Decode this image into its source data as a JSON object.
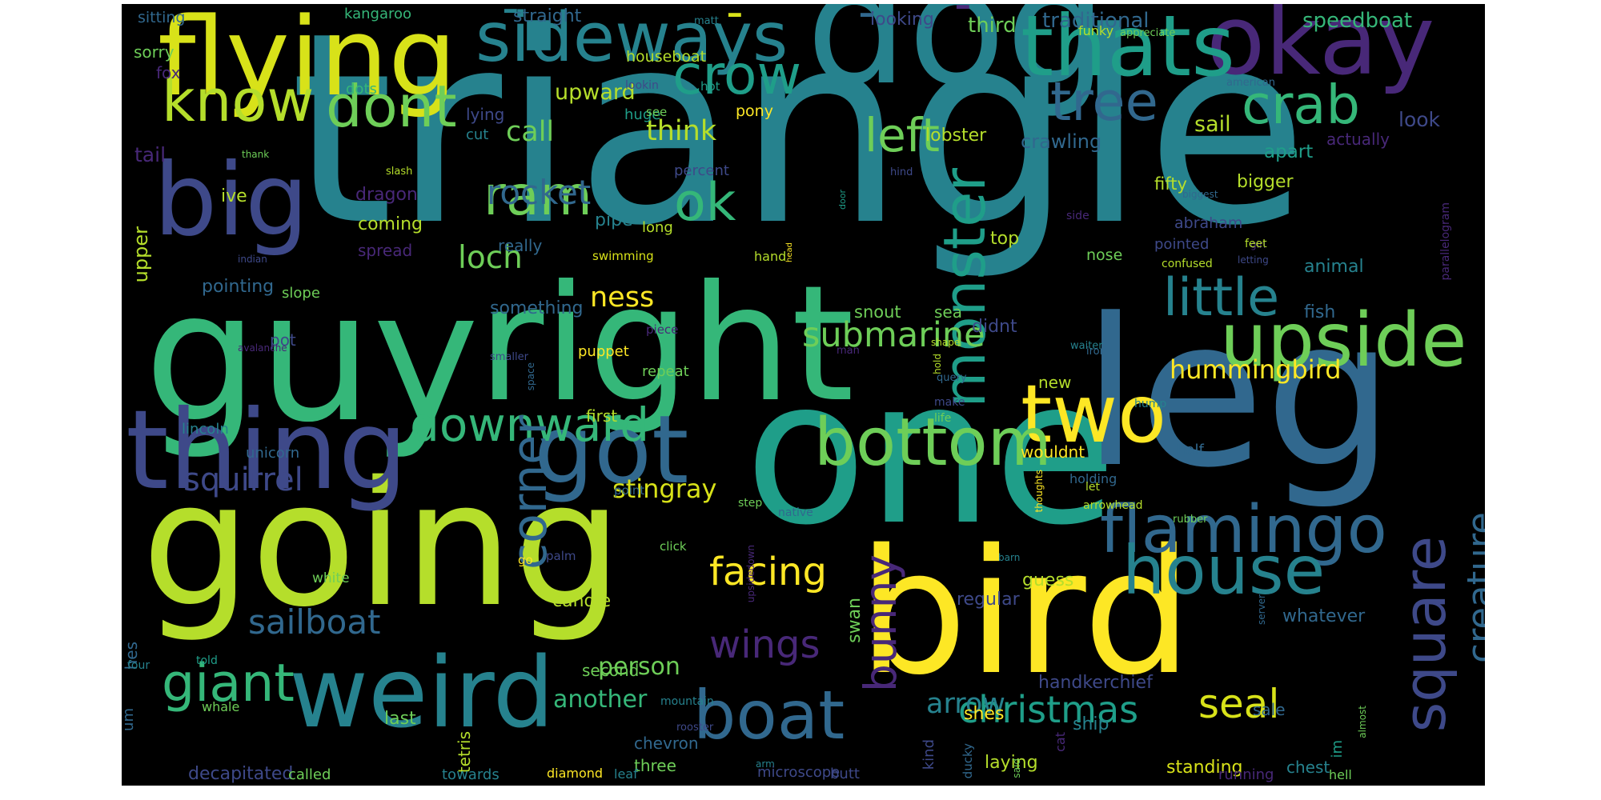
{
  "palette": [
    "#fde725",
    "#b5de2b",
    "#6ece58",
    "#35b779",
    "#1f9e89",
    "#26828e",
    "#31688e",
    "#3e4989",
    "#482878",
    "#440154"
  ],
  "words": [
    {
      "text": "triangle",
      "color": "#26828e"
    },
    {
      "text": "guy",
      "color": "#35b779"
    },
    {
      "text": "going",
      "color": "#b5de2b"
    },
    {
      "text": "one",
      "color": "#1f9e89"
    },
    {
      "text": "right",
      "color": "#35b779"
    },
    {
      "text": "bird",
      "color": "#fde725"
    },
    {
      "text": "leg",
      "color": "#31688e"
    },
    {
      "text": "dog",
      "color": "#26828e"
    },
    {
      "text": "flying",
      "color": "#d8e219"
    },
    {
      "text": "thing",
      "color": "#3e4989"
    },
    {
      "text": "okay",
      "color": "#482878"
    },
    {
      "text": "got",
      "color": "#31688e"
    },
    {
      "text": "weird",
      "color": "#26828e"
    },
    {
      "text": "upside",
      "color": "#6ece58"
    },
    {
      "text": "two",
      "color": "#fde725"
    },
    {
      "text": "big",
      "color": "#3e4989"
    },
    {
      "text": "thats",
      "color": "#1f9e89"
    },
    {
      "text": "flamingo",
      "color": "#31688e"
    },
    {
      "text": "sideways",
      "color": "#26828e"
    },
    {
      "text": "bottom",
      "color": "#6ece58"
    },
    {
      "text": "monster",
      "color": "#1f9e89"
    },
    {
      "text": "house",
      "color": "#26828e"
    },
    {
      "text": "boat",
      "color": "#31688e"
    },
    {
      "text": "square",
      "color": "#3e4989"
    },
    {
      "text": "know",
      "color": "#b5de2b"
    },
    {
      "text": "dont",
      "color": "#6ece58"
    },
    {
      "text": "tree",
      "color": "#31688e"
    },
    {
      "text": "crab",
      "color": "#35b779"
    },
    {
      "text": "crow",
      "color": "#1f9e89"
    },
    {
      "text": "little",
      "color": "#26828e"
    },
    {
      "text": "downward",
      "color": "#35b779"
    },
    {
      "text": "corner",
      "color": "#31688e"
    },
    {
      "text": "giant",
      "color": "#35b779"
    },
    {
      "text": "bunny",
      "color": "#482878"
    },
    {
      "text": "ram",
      "color": "#6ece58"
    },
    {
      "text": "left",
      "color": "#6ece58"
    },
    {
      "text": "ok",
      "color": "#35b779"
    },
    {
      "text": "christmas",
      "color": "#1f9e89"
    },
    {
      "text": "creature",
      "color": "#31688e"
    },
    {
      "text": "submarine",
      "color": "#6ece58"
    },
    {
      "text": "wings",
      "color": "#482878"
    },
    {
      "text": "facing",
      "color": "#fde725"
    },
    {
      "text": "sailboat",
      "color": "#31688e"
    },
    {
      "text": "seal",
      "color": "#d8e219"
    },
    {
      "text": "squirrel",
      "color": "#3e4989"
    },
    {
      "text": "rocket",
      "color": "#31688e"
    },
    {
      "text": "loch",
      "color": "#6ece58"
    },
    {
      "text": "ness",
      "color": "#fde725"
    },
    {
      "text": "call",
      "color": "#6ece58"
    },
    {
      "text": "think",
      "color": "#b5de2b"
    },
    {
      "text": "stingray",
      "color": "#d8e219"
    },
    {
      "text": "hummingbird",
      "color": "#fde725"
    },
    {
      "text": "person",
      "color": "#6ece58"
    },
    {
      "text": "arrow",
      "color": "#26828e"
    },
    {
      "text": "another",
      "color": "#35b779"
    },
    {
      "text": "upward",
      "color": "#b5de2b"
    },
    {
      "text": "sail",
      "color": "#b5de2b"
    },
    {
      "text": "speedboat",
      "color": "#35b779"
    },
    {
      "text": "traditional",
      "color": "#31688e"
    },
    {
      "text": "third",
      "color": "#6ece58"
    },
    {
      "text": "looking",
      "color": "#3e4989"
    },
    {
      "text": "straight",
      "color": "#31688e"
    },
    {
      "text": "kangaroo",
      "color": "#35b779"
    },
    {
      "text": "sitting",
      "color": "#31688e"
    },
    {
      "text": "matt",
      "color": "#26828e"
    },
    {
      "text": "funky",
      "color": "#b5de2b"
    },
    {
      "text": "appreciate",
      "color": "#6ece58"
    },
    {
      "text": "sorry",
      "color": "#6ece58"
    },
    {
      "text": "fox",
      "color": "#482878"
    },
    {
      "text": "houseboat",
      "color": "#b5de2b"
    },
    {
      "text": "hot",
      "color": "#1f9e89"
    },
    {
      "text": "american",
      "color": "#31688e"
    },
    {
      "text": "dots",
      "color": "#35b779"
    },
    {
      "text": "lookin",
      "color": "#3e4989"
    },
    {
      "text": "huge",
      "color": "#1f9e89"
    },
    {
      "text": "see",
      "color": "#6ece58"
    },
    {
      "text": "pony",
      "color": "#fde725"
    },
    {
      "text": "look",
      "color": "#3e4989"
    },
    {
      "text": "lying",
      "color": "#3e4989"
    },
    {
      "text": "cut",
      "color": "#26828e"
    },
    {
      "text": "crawling",
      "color": "#31688e"
    },
    {
      "text": "lobster",
      "color": "#b5de2b"
    },
    {
      "text": "apart",
      "color": "#1f9e89"
    },
    {
      "text": "actually",
      "color": "#482878"
    },
    {
      "text": "tail",
      "color": "#482878"
    },
    {
      "text": "thank",
      "color": "#6ece58"
    },
    {
      "text": "percent",
      "color": "#3e4989"
    },
    {
      "text": "hind",
      "color": "#3e4989"
    },
    {
      "text": "slash",
      "color": "#b5de2b"
    },
    {
      "text": "fifty",
      "color": "#b5de2b"
    },
    {
      "text": "bigger",
      "color": "#b5de2b"
    },
    {
      "text": "parallelogram",
      "color": "#482878"
    },
    {
      "text": "ive",
      "color": "#b5de2b"
    },
    {
      "text": "dragon",
      "color": "#482878"
    },
    {
      "text": "biggest",
      "color": "#31688e"
    },
    {
      "text": "upper",
      "color": "#b5de2b"
    },
    {
      "text": "coming",
      "color": "#b5de2b"
    },
    {
      "text": "pipe",
      "color": "#26828e"
    },
    {
      "text": "side",
      "color": "#482878"
    },
    {
      "text": "abraham",
      "color": "#3e4989"
    },
    {
      "text": "long",
      "color": "#b5de2b"
    },
    {
      "text": "really",
      "color": "#31688e"
    },
    {
      "text": "door",
      "color": "#1f9e89"
    },
    {
      "text": "pointed",
      "color": "#3e4989"
    },
    {
      "text": "girl",
      "color": "#482878"
    },
    {
      "text": "feet",
      "color": "#b5de2b"
    },
    {
      "text": "spread",
      "color": "#482878"
    },
    {
      "text": "indian",
      "color": "#3e4989"
    },
    {
      "text": "swimming",
      "color": "#d8e219"
    },
    {
      "text": "hand",
      "color": "#b5de2b"
    },
    {
      "text": "head",
      "color": "#fde725"
    },
    {
      "text": "top",
      "color": "#b5de2b"
    },
    {
      "text": "nose",
      "color": "#6ece58"
    },
    {
      "text": "confused",
      "color": "#b5de2b"
    },
    {
      "text": "letting",
      "color": "#3e4989"
    },
    {
      "text": "animal",
      "color": "#26828e"
    },
    {
      "text": "pointing",
      "color": "#31688e"
    },
    {
      "text": "slope",
      "color": "#6ece58"
    },
    {
      "text": "something",
      "color": "#31688e"
    },
    {
      "text": "snout",
      "color": "#6ece58"
    },
    {
      "text": "sea",
      "color": "#6ece58"
    },
    {
      "text": "fish",
      "color": "#31688e"
    },
    {
      "text": "pot",
      "color": "#3e4989"
    },
    {
      "text": "avalanche",
      "color": "#482878"
    },
    {
      "text": "piece",
      "color": "#482878"
    },
    {
      "text": "shape",
      "color": "#b5de2b"
    },
    {
      "text": "didnt",
      "color": "#3e4989"
    },
    {
      "text": "waiter",
      "color": "#26828e"
    },
    {
      "text": "man",
      "color": "#482878"
    },
    {
      "text": "iron",
      "color": "#31688e"
    },
    {
      "text": "puppet",
      "color": "#fde725"
    },
    {
      "text": "space",
      "color": "#31688e"
    },
    {
      "text": "smaller",
      "color": "#3e4989"
    },
    {
      "text": "first",
      "color": "#b5de2b"
    },
    {
      "text": "make",
      "color": "#3e4989"
    },
    {
      "text": "hold",
      "color": "#b5de2b"
    },
    {
      "text": "query",
      "color": "#31688e"
    },
    {
      "text": "new",
      "color": "#b5de2b"
    },
    {
      "text": "repeat",
      "color": "#6ece58"
    },
    {
      "text": "hump",
      "color": "#26828e"
    },
    {
      "text": "life",
      "color": "#6ece58"
    },
    {
      "text": "lincoln",
      "color": "#26828e"
    },
    {
      "text": "half",
      "color": "#31688e"
    },
    {
      "text": "unicorn",
      "color": "#31688e"
    },
    {
      "text": "wouldnt",
      "color": "#fde725"
    },
    {
      "text": "thoughts",
      "color": "#fde725"
    },
    {
      "text": "point",
      "color": "#31688e"
    },
    {
      "text": "holding",
      "color": "#31688e"
    },
    {
      "text": "let",
      "color": "#b5de2b"
    },
    {
      "text": "step",
      "color": "#6ece58"
    },
    {
      "text": "arrowhead",
      "color": "#b5de2b"
    },
    {
      "text": "rubber",
      "color": "#6ece58"
    },
    {
      "text": "palm",
      "color": "#3e4989"
    },
    {
      "text": "native",
      "color": "#31688e"
    },
    {
      "text": "go",
      "color": "#fde725"
    },
    {
      "text": "barn",
      "color": "#26828e"
    },
    {
      "text": "click",
      "color": "#6ece58"
    },
    {
      "text": "upsidedown",
      "color": "#482878"
    },
    {
      "text": "server",
      "color": "#31688e"
    },
    {
      "text": "swan",
      "color": "#6ece58"
    },
    {
      "text": "guess",
      "color": "#b5de2b"
    },
    {
      "text": "hes",
      "color": "#31688e"
    },
    {
      "text": "white",
      "color": "#6ece58"
    },
    {
      "text": "regular",
      "color": "#3e4989"
    },
    {
      "text": "candle",
      "color": "#b5de2b"
    },
    {
      "text": "whatever",
      "color": "#31688e"
    },
    {
      "text": "four",
      "color": "#26828e"
    },
    {
      "text": "told",
      "color": "#1f9e89"
    },
    {
      "text": "handkerchief",
      "color": "#3e4989"
    },
    {
      "text": "second",
      "color": "#6ece58"
    },
    {
      "text": "um",
      "color": "#31688e"
    },
    {
      "text": "mountain",
      "color": "#26828e"
    },
    {
      "text": "shes",
      "color": "#fde725"
    },
    {
      "text": "whale",
      "color": "#6ece58"
    },
    {
      "text": "almost",
      "color": "#6ece58"
    },
    {
      "text": "sale",
      "color": "#31688e"
    },
    {
      "text": "kind",
      "color": "#3e4989"
    },
    {
      "text": "cat",
      "color": "#482878"
    },
    {
      "text": "ship",
      "color": "#26828e"
    },
    {
      "text": "last",
      "color": "#6ece58"
    },
    {
      "text": "tetris",
      "color": "#b5de2b"
    },
    {
      "text": "im",
      "color": "#1f9e89"
    },
    {
      "text": "rooster",
      "color": "#3e4989"
    },
    {
      "text": "ducky",
      "color": "#31688e"
    },
    {
      "text": "chevron",
      "color": "#31688e"
    },
    {
      "text": "laying",
      "color": "#b5de2b"
    },
    {
      "text": "said",
      "color": "#6ece58"
    },
    {
      "text": "three",
      "color": "#6ece58"
    },
    {
      "text": "standing",
      "color": "#d8e219"
    },
    {
      "text": "chest",
      "color": "#26828e"
    },
    {
      "text": "arm",
      "color": "#26828e"
    },
    {
      "text": "decapitated",
      "color": "#3e4989"
    },
    {
      "text": "called",
      "color": "#6ece58"
    },
    {
      "text": "towards",
      "color": "#26828e"
    },
    {
      "text": "diamond",
      "color": "#fde725"
    },
    {
      "text": "leaf",
      "color": "#26828e"
    },
    {
      "text": "microscope",
      "color": "#3e4989"
    },
    {
      "text": "butt",
      "color": "#3e4989"
    },
    {
      "text": "running",
      "color": "#482878"
    },
    {
      "text": "hell",
      "color": "#6ece58"
    },
    {
      "text": "-",
      "color": "#26828e"
    },
    {
      "text": "-",
      "color": "#d8e219"
    },
    {
      "text": "-",
      "color": "#482878"
    },
    {
      "text": "-",
      "color": "#31688e"
    }
  ]
}
